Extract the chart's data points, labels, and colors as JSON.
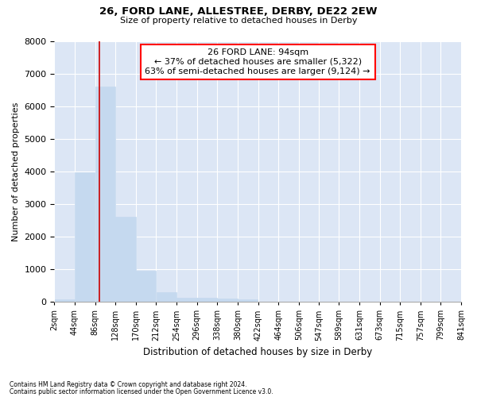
{
  "title1": "26, FORD LANE, ALLESTREE, DERBY, DE22 2EW",
  "title2": "Size of property relative to detached houses in Derby",
  "xlabel": "Distribution of detached houses by size in Derby",
  "ylabel": "Number of detached properties",
  "footnote1": "Contains HM Land Registry data © Crown copyright and database right 2024.",
  "footnote2": "Contains public sector information licensed under the Open Government Licence v3.0.",
  "annotation_line1": "26 FORD LANE: 94sqm",
  "annotation_line2": "← 37% of detached houses are smaller (5,322)",
  "annotation_line3": "63% of semi-detached houses are larger (9,124) →",
  "bar_color": "#c5d9ef",
  "bar_edge_color": "#c5d9ef",
  "marker_line_color": "#cc0000",
  "background_color": "#dce6f5",
  "bin_edges": [
    2,
    44,
    86,
    128,
    170,
    212,
    254,
    296,
    338,
    380,
    422,
    464,
    506,
    547,
    589,
    631,
    673,
    715,
    757,
    799,
    841
  ],
  "bin_labels": [
    "2sqm",
    "44sqm",
    "86sqm",
    "128sqm",
    "170sqm",
    "212sqm",
    "254sqm",
    "296sqm",
    "338sqm",
    "380sqm",
    "422sqm",
    "464sqm",
    "506sqm",
    "547sqm",
    "589sqm",
    "631sqm",
    "673sqm",
    "715sqm",
    "757sqm",
    "799sqm",
    "841sqm"
  ],
  "bar_heights": [
    80,
    3980,
    6600,
    2620,
    950,
    300,
    120,
    120,
    90,
    70,
    0,
    0,
    0,
    0,
    0,
    0,
    0,
    0,
    0,
    0
  ],
  "property_size": 94,
  "ylim": [
    0,
    8000
  ],
  "yticks": [
    0,
    1000,
    2000,
    3000,
    4000,
    5000,
    6000,
    7000,
    8000
  ]
}
